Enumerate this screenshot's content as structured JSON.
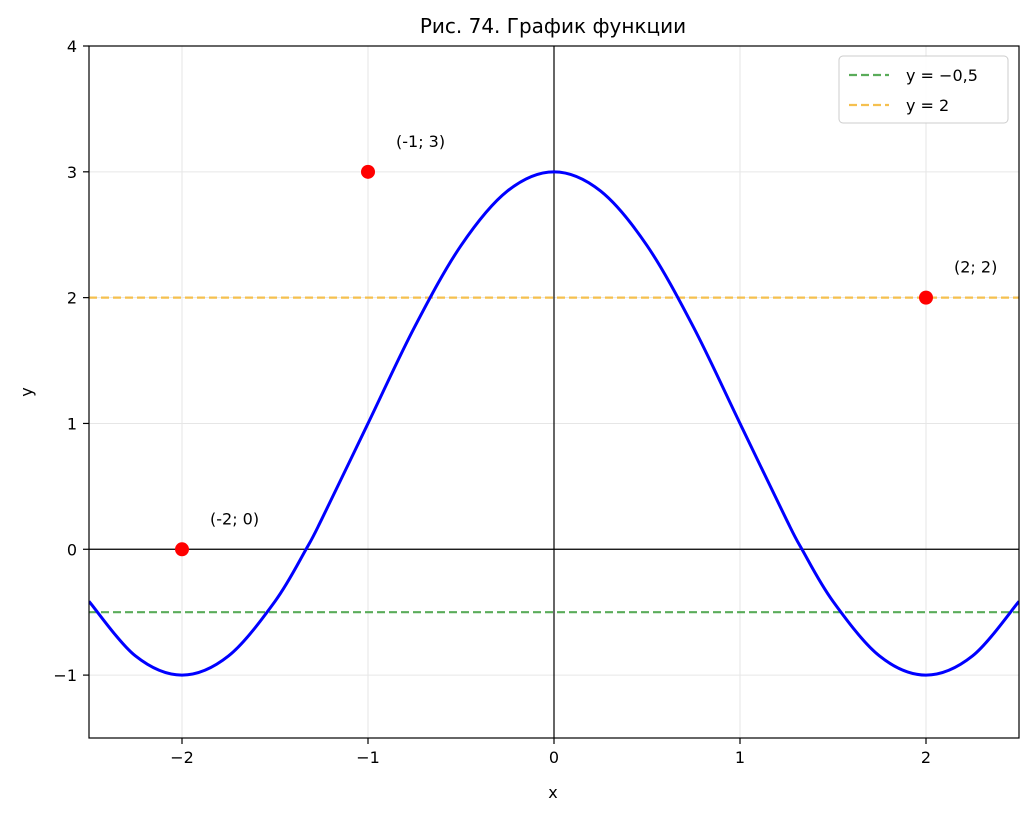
{
  "chart_data": {
    "type": "line",
    "title": "Рис. 74. График функции",
    "xlabel": "x",
    "ylabel": "y",
    "xlim": [
      -2.5,
      2.5
    ],
    "ylim": [
      -1.5,
      4
    ],
    "xticks": [
      -2,
      -1,
      0,
      1,
      2
    ],
    "xtick_labels": [
      "−2",
      "−1",
      "0",
      "1",
      "2"
    ],
    "yticks": [
      -1,
      0,
      1,
      2,
      3,
      4
    ],
    "ytick_labels": [
      "−1",
      "0",
      "1",
      "2",
      "3",
      "4"
    ],
    "grid": true,
    "legend_position": "top-right",
    "curve": {
      "color": "#0000ff",
      "formula_shape": "y = 1 + 2·cos(π·x/2)",
      "x": [
        -2.5,
        -2.25,
        -2.0,
        -1.75,
        -1.5,
        -1.333,
        -1.25,
        -1.0,
        -0.75,
        -0.5,
        -0.25,
        0.0,
        0.25,
        0.5,
        0.75,
        1.0,
        1.25,
        1.333,
        1.5,
        1.75,
        2.0,
        2.25,
        2.5
      ],
      "y": [
        -0.414,
        -0.848,
        -1.0,
        -0.848,
        -0.414,
        0.0,
        0.235,
        1.0,
        1.765,
        2.414,
        2.848,
        3.0,
        2.848,
        2.414,
        1.765,
        1.0,
        0.235,
        0.0,
        -0.414,
        -0.848,
        -1.0,
        -0.848,
        -0.414
      ]
    },
    "hlines": [
      {
        "label": "y = −0,5",
        "y": -0.5,
        "color": "#5aac5a"
      },
      {
        "label": "y = 2",
        "y": 2,
        "color": "#f5c04f"
      }
    ],
    "points": [
      {
        "x": -2,
        "y": 0,
        "label": "(-2; 0)"
      },
      {
        "x": -1,
        "y": 3,
        "label": "(-1; 3)"
      },
      {
        "x": 2,
        "y": 2,
        "label": "(2; 2)"
      }
    ],
    "point_color": "#ff0000"
  }
}
